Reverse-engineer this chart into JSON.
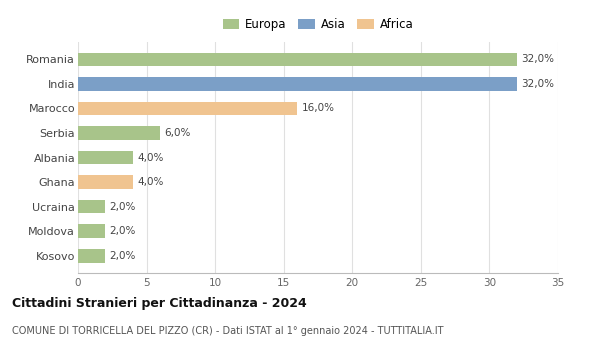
{
  "categories": [
    "Romania",
    "India",
    "Marocco",
    "Serbia",
    "Albania",
    "Ghana",
    "Ucraina",
    "Moldova",
    "Kosovo"
  ],
  "values": [
    32.0,
    32.0,
    16.0,
    6.0,
    4.0,
    4.0,
    2.0,
    2.0,
    2.0
  ],
  "colors": [
    "#a8c48a",
    "#7b9fc7",
    "#f0c490",
    "#a8c48a",
    "#a8c48a",
    "#f0c490",
    "#a8c48a",
    "#a8c48a",
    "#a8c48a"
  ],
  "legend_labels": [
    "Europa",
    "Asia",
    "Africa"
  ],
  "legend_colors": [
    "#a8c48a",
    "#7b9fc7",
    "#f0c490"
  ],
  "title": "Cittadini Stranieri per Cittadinanza - 2024",
  "subtitle": "COMUNE DI TORRICELLA DEL PIZZO (CR) - Dati ISTAT al 1° gennaio 2024 - TUTTITALIA.IT",
  "xlim": [
    0,
    35
  ],
  "xticks": [
    0,
    5,
    10,
    15,
    20,
    25,
    30,
    35
  ],
  "background_color": "#ffffff",
  "grid_color": "#e0e0e0",
  "bar_height": 0.55
}
